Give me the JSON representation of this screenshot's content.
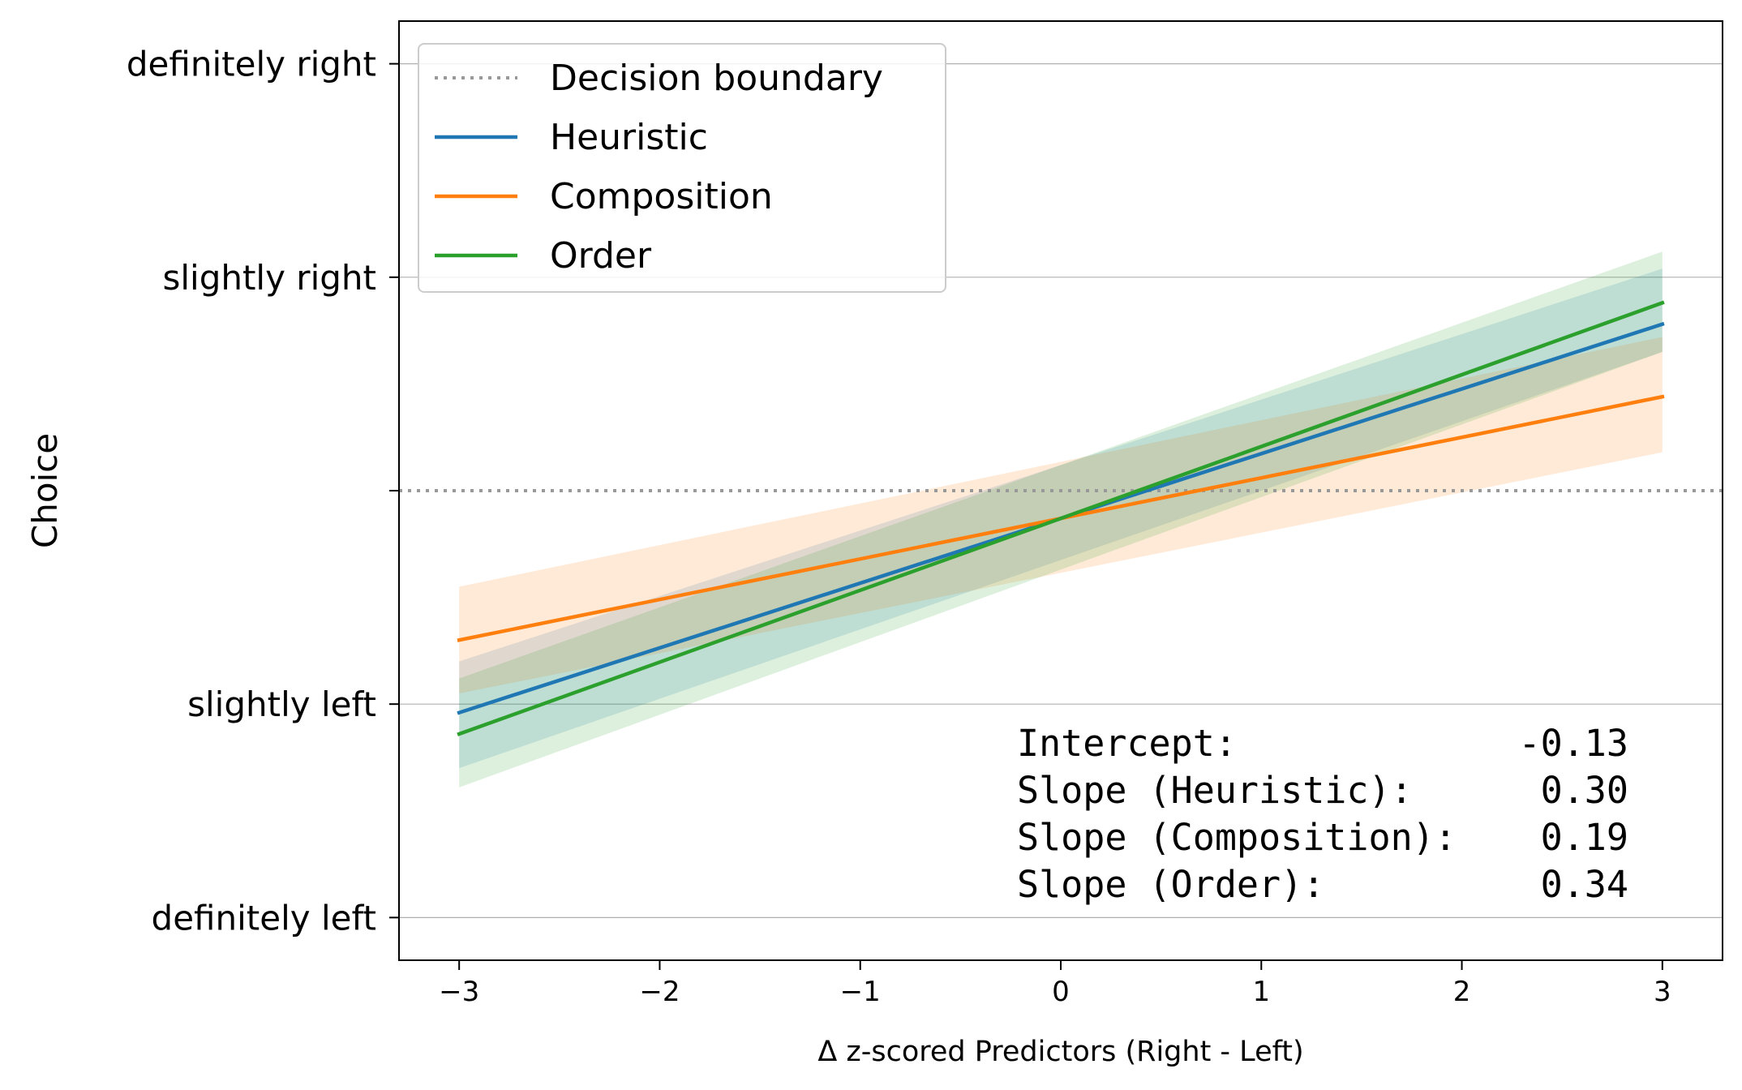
{
  "chart_data": {
    "type": "line",
    "xlabel": "Δ z-scored Predictors (Right - Left)",
    "ylabel": "Choice",
    "xlim": [
      -3.3,
      3.3
    ],
    "ylim": [
      -2.2,
      2.2
    ],
    "xticks": [
      {
        "value": -3,
        "label": "−3"
      },
      {
        "value": -2,
        "label": "−2"
      },
      {
        "value": -1,
        "label": "−1"
      },
      {
        "value": 0,
        "label": "0"
      },
      {
        "value": 1,
        "label": "1"
      },
      {
        "value": 2,
        "label": "2"
      },
      {
        "value": 3,
        "label": "3"
      }
    ],
    "yticks": [
      {
        "value": 2,
        "label": "definitely right"
      },
      {
        "value": 1,
        "label": "slightly right"
      },
      {
        "value": 0,
        "label": ""
      },
      {
        "value": -1,
        "label": "slightly left"
      },
      {
        "value": -2,
        "label": "definitely left"
      }
    ],
    "grid": "horizontal",
    "decision_boundary": {
      "name": "Decision boundary",
      "y": 0,
      "color": "#999999"
    },
    "x": [
      -3,
      3
    ],
    "series": [
      {
        "name": "Heuristic",
        "color": "#1f77b4",
        "values": [
          -1.04,
          0.78
        ],
        "lower": [
          -1.3,
          0.65
        ],
        "upper": [
          -0.8,
          1.04
        ]
      },
      {
        "name": "Composition",
        "color": "#ff7f0e",
        "values": [
          -0.7,
          0.44
        ],
        "lower": [
          -0.95,
          0.18
        ],
        "upper": [
          -0.45,
          0.72
        ]
      },
      {
        "name": "Order",
        "color": "#2ca02c",
        "values": [
          -1.14,
          0.88
        ],
        "lower": [
          -1.39,
          0.65
        ],
        "upper": [
          -0.88,
          1.12
        ]
      }
    ],
    "legend": "top-left",
    "annotation": {
      "lines": [
        {
          "label": "Intercept:",
          "value": "-0.13"
        },
        {
          "label": "Slope (Heuristic):",
          "value": "0.30"
        },
        {
          "label": "Slope (Composition):",
          "value": "0.19"
        },
        {
          "label": "Slope (Order):",
          "value": "0.34"
        }
      ]
    }
  }
}
